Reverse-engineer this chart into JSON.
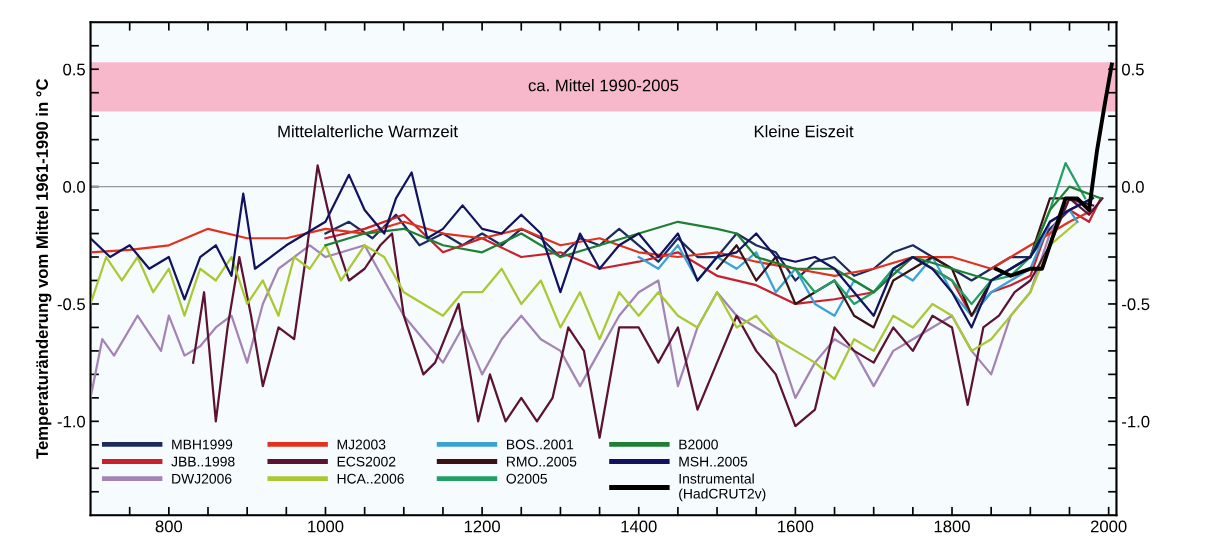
{
  "chart_data": {
    "type": "line",
    "ylabel": "Temperaturänderung vom Mittel 1961-1990 in °C",
    "xlim": [
      700,
      2010
    ],
    "ylim": [
      -1.4,
      0.7
    ],
    "y2lim": [
      -1.4,
      0.7
    ],
    "xticks": [
      {
        "value": 750,
        "label": null
      },
      800,
      {
        "value": 850,
        "label": null
      },
      {
        "value": 900,
        "label": null
      },
      {
        "value": 950,
        "label": null
      },
      1000,
      {
        "value": 1050,
        "label": null
      },
      {
        "value": 1100,
        "label": null
      },
      {
        "value": 1150,
        "label": null
      },
      1200,
      {
        "value": 1250,
        "label": null
      },
      {
        "value": 1300,
        "label": null
      },
      {
        "value": 1350,
        "label": null
      },
      1400,
      {
        "value": 1450,
        "label": null
      },
      {
        "value": 1500,
        "label": null
      },
      {
        "value": 1550,
        "label": null
      },
      1600,
      {
        "value": 1650,
        "label": null
      },
      {
        "value": 1700,
        "label": null
      },
      {
        "value": 1750,
        "label": null
      },
      1800,
      {
        "value": 1850,
        "label": null
      },
      {
        "value": 1900,
        "label": null
      },
      {
        "value": 1950,
        "label": null
      },
      2000
    ],
    "yticks": [
      {
        "value": -1.3,
        "label": null
      },
      {
        "value": -1.2,
        "label": null
      },
      {
        "value": -1.1,
        "label": null
      },
      {
        "value": -1.0,
        "label": "-1.0"
      },
      {
        "value": -0.9,
        "label": null
      },
      {
        "value": -0.8,
        "label": null
      },
      {
        "value": -0.7,
        "label": null
      },
      {
        "value": -0.6,
        "label": null
      },
      {
        "value": -0.5,
        "label": "-0.5"
      },
      {
        "value": -0.4,
        "label": null
      },
      {
        "value": -0.3,
        "label": null
      },
      {
        "value": -0.2,
        "label": null
      },
      {
        "value": -0.1,
        "label": null
      },
      {
        "value": 0.0,
        "label": "0.0"
      },
      {
        "value": 0.1,
        "label": null
      },
      {
        "value": 0.2,
        "label": null
      },
      {
        "value": 0.3,
        "label": null
      },
      {
        "value": 0.4,
        "label": null
      },
      {
        "value": 0.5,
        "label": "0.5"
      },
      {
        "value": 0.6,
        "label": null
      }
    ],
    "y2ticks": [
      {
        "value": -1.3,
        "label": null
      },
      {
        "value": -1.2,
        "label": null
      },
      {
        "value": -1.1,
        "label": null
      },
      {
        "value": -1.0,
        "label": "-1.0"
      },
      {
        "value": -0.9,
        "label": null
      },
      {
        "value": -0.8,
        "label": null
      },
      {
        "value": -0.7,
        "label": null
      },
      {
        "value": -0.6,
        "label": null
      },
      {
        "value": -0.5,
        "label": "-0.5"
      },
      {
        "value": -0.4,
        "label": null
      },
      {
        "value": -0.3,
        "label": null
      },
      {
        "value": -0.2,
        "label": null
      },
      {
        "value": -0.1,
        "label": null
      },
      {
        "value": 0.0,
        "label": "0.0"
      },
      {
        "value": 0.1,
        "label": null
      },
      {
        "value": 0.2,
        "label": null
      },
      {
        "value": 0.3,
        "label": null
      },
      {
        "value": 0.4,
        "label": null
      },
      {
        "value": 0.5,
        "label": "0.5"
      },
      {
        "value": 0.6,
        "label": null
      }
    ],
    "bands": [
      {
        "axis": "y",
        "from": 0.32,
        "to": 0.53,
        "label": "ca. Mittel 1990-2005",
        "color": "#f7b8cb"
      }
    ],
    "ref_lines": [
      {
        "axis": "y",
        "value": 0.0,
        "label": null,
        "color": "#999999"
      }
    ],
    "annotations": [
      "Mittelalterliche Warmzeit",
      "Kleine Eiszeit"
    ],
    "legend": "bottom left",
    "grid": false,
    "marker": "none",
    "line_style": "solid",
    "series": [
      {
        "name": "MBH1999",
        "color": "#1c2b5e",
        "x": [
          1000,
          1030,
          1060,
          1090,
          1120,
          1150,
          1175,
          1200,
          1225,
          1250,
          1275,
          1300,
          1325,
          1350,
          1375,
          1400,
          1425,
          1450,
          1475,
          1500,
          1525,
          1550,
          1575,
          1600,
          1625,
          1650,
          1675,
          1700,
          1725,
          1750,
          1775,
          1800,
          1825,
          1850,
          1875,
          1900,
          1925,
          1950,
          1980
        ],
        "values": [
          -0.2,
          -0.15,
          -0.22,
          -0.12,
          -0.25,
          -0.2,
          -0.25,
          -0.2,
          -0.25,
          -0.18,
          -0.22,
          -0.3,
          -0.22,
          -0.25,
          -0.18,
          -0.25,
          -0.32,
          -0.22,
          -0.3,
          -0.3,
          -0.2,
          -0.25,
          -0.28,
          -0.4,
          -0.32,
          -0.3,
          -0.38,
          -0.35,
          -0.28,
          -0.25,
          -0.3,
          -0.35,
          -0.4,
          -0.35,
          -0.3,
          -0.3,
          -0.18,
          -0.1,
          -0.05
        ]
      },
      {
        "name": "JBB..1998",
        "color": "#c8202c",
        "x": [
          1000,
          1050,
          1100,
          1150,
          1200,
          1250,
          1300,
          1350,
          1400,
          1450,
          1500,
          1550,
          1600,
          1650,
          1700,
          1750,
          1800,
          1825,
          1850,
          1875,
          1900,
          1925,
          1950,
          1975,
          1990
        ],
        "values": [
          -0.22,
          -0.18,
          -0.12,
          -0.28,
          -0.22,
          -0.3,
          -0.28,
          -0.35,
          -0.32,
          -0.28,
          -0.38,
          -0.42,
          -0.5,
          -0.48,
          -0.45,
          -0.3,
          -0.4,
          -0.55,
          -0.45,
          -0.42,
          -0.38,
          -0.15,
          -0.1,
          -0.15,
          -0.05
        ]
      },
      {
        "name": "DWJ2006",
        "color": "#a384b4",
        "x": [
          700,
          715,
          730,
          760,
          790,
          800,
          820,
          840,
          860,
          880,
          900,
          920,
          940,
          960,
          980,
          1000,
          1050,
          1100,
          1125,
          1150,
          1175,
          1200,
          1225,
          1250,
          1275,
          1300,
          1325,
          1350,
          1375,
          1400,
          1425,
          1450,
          1475,
          1500,
          1525,
          1550,
          1575,
          1600,
          1625,
          1650,
          1675,
          1700,
          1725,
          1750,
          1775,
          1800,
          1825,
          1850,
          1875,
          1900,
          1925,
          1950,
          1980
        ],
        "values": [
          -0.9,
          -0.65,
          -0.72,
          -0.55,
          -0.7,
          -0.55,
          -0.72,
          -0.68,
          -0.6,
          -0.55,
          -0.75,
          -0.5,
          -0.35,
          -0.3,
          -0.25,
          -0.3,
          -0.25,
          -0.55,
          -0.65,
          -0.75,
          -0.6,
          -0.8,
          -0.65,
          -0.55,
          -0.65,
          -0.7,
          -0.85,
          -0.7,
          -0.55,
          -0.45,
          -0.4,
          -0.85,
          -0.6,
          -0.45,
          -0.55,
          -0.6,
          -0.65,
          -0.9,
          -0.75,
          -0.65,
          -0.7,
          -0.85,
          -0.7,
          -0.65,
          -0.6,
          -0.55,
          -0.7,
          -0.8,
          -0.55,
          -0.45,
          -0.2,
          -0.05,
          -0.1
        ]
      },
      {
        "name": "MJ2003",
        "color": "#e2321f",
        "x": [
          700,
          750,
          800,
          850,
          900,
          950,
          1000,
          1050,
          1100,
          1150,
          1200,
          1250,
          1300,
          1350,
          1400,
          1450,
          1500,
          1550,
          1600,
          1650,
          1700,
          1750,
          1800,
          1850,
          1900,
          1950,
          1980
        ],
        "values": [
          -0.28,
          -0.27,
          -0.25,
          -0.18,
          -0.22,
          -0.22,
          -0.18,
          -0.2,
          -0.15,
          -0.2,
          -0.22,
          -0.18,
          -0.25,
          -0.22,
          -0.28,
          -0.3,
          -0.28,
          -0.32,
          -0.35,
          -0.38,
          -0.35,
          -0.3,
          -0.3,
          -0.35,
          -0.25,
          -0.15,
          -0.1
        ]
      },
      {
        "name": "ECS2002",
        "color": "#5c1232",
        "x": [
          831,
          845,
          860,
          875,
          890,
          905,
          920,
          940,
          960,
          975,
          990,
          1010,
          1030,
          1050,
          1070,
          1085,
          1100,
          1125,
          1140,
          1170,
          1195,
          1210,
          1230,
          1250,
          1270,
          1290,
          1310,
          1330,
          1350,
          1375,
          1400,
          1425,
          1450,
          1475,
          1500,
          1525,
          1550,
          1575,
          1600,
          1625,
          1650,
          1675,
          1700,
          1725,
          1750,
          1775,
          1800,
          1820,
          1840,
          1860,
          1880,
          1900,
          1925,
          1950,
          1975,
          1992
        ],
        "values": [
          -0.75,
          -0.45,
          -1.0,
          -0.6,
          -0.3,
          -0.55,
          -0.85,
          -0.6,
          -0.65,
          -0.3,
          0.09,
          -0.2,
          -0.4,
          -0.35,
          -0.25,
          -0.2,
          -0.55,
          -0.8,
          -0.75,
          -0.5,
          -1.0,
          -0.8,
          -1.0,
          -0.9,
          -1.0,
          -0.9,
          -0.6,
          -0.7,
          -1.07,
          -0.6,
          -0.6,
          -0.75,
          -0.6,
          -0.95,
          -0.75,
          -0.55,
          -0.7,
          -0.8,
          -1.02,
          -0.95,
          -0.6,
          -0.7,
          -0.75,
          -0.6,
          -0.7,
          -0.55,
          -0.6,
          -0.93,
          -0.6,
          -0.55,
          -0.45,
          -0.4,
          -0.25,
          -0.05,
          -0.12,
          -0.05
        ]
      },
      {
        "name": "HCA..2006",
        "color": "#a9c832",
        "x": [
          700,
          720,
          740,
          760,
          780,
          800,
          820,
          840,
          860,
          880,
          900,
          920,
          940,
          960,
          980,
          1000,
          1020,
          1050,
          1075,
          1100,
          1125,
          1150,
          1175,
          1200,
          1225,
          1250,
          1275,
          1300,
          1325,
          1350,
          1375,
          1400,
          1425,
          1450,
          1475,
          1500,
          1525,
          1550,
          1575,
          1600,
          1625,
          1650,
          1675,
          1700,
          1725,
          1750,
          1775,
          1800,
          1825,
          1850,
          1875,
          1900,
          1925,
          1960
        ],
        "values": [
          -0.5,
          -0.3,
          -0.4,
          -0.3,
          -0.45,
          -0.35,
          -0.55,
          -0.35,
          -0.4,
          -0.3,
          -0.5,
          -0.4,
          -0.55,
          -0.3,
          -0.35,
          -0.25,
          -0.4,
          -0.25,
          -0.3,
          -0.45,
          -0.5,
          -0.55,
          -0.45,
          -0.45,
          -0.35,
          -0.5,
          -0.4,
          -0.6,
          -0.45,
          -0.65,
          -0.45,
          -0.55,
          -0.45,
          -0.55,
          -0.6,
          -0.45,
          -0.6,
          -0.55,
          -0.65,
          -0.7,
          -0.75,
          -0.82,
          -0.65,
          -0.7,
          -0.55,
          -0.6,
          -0.5,
          -0.55,
          -0.7,
          -0.65,
          -0.55,
          -0.45,
          -0.25,
          -0.15
        ]
      },
      {
        "name": "BOS..2001",
        "color": "#3aa2d2",
        "x": [
          1400,
          1425,
          1450,
          1475,
          1500,
          1525,
          1550,
          1575,
          1600,
          1625,
          1650,
          1675,
          1700,
          1725,
          1750,
          1775,
          1800,
          1825,
          1850,
          1875,
          1900,
          1925,
          1950,
          1960
        ],
        "values": [
          -0.3,
          -0.35,
          -0.25,
          -0.4,
          -0.3,
          -0.35,
          -0.28,
          -0.45,
          -0.35,
          -0.5,
          -0.55,
          -0.4,
          -0.45,
          -0.35,
          -0.4,
          -0.3,
          -0.45,
          -0.55,
          -0.45,
          -0.4,
          -0.35,
          -0.15,
          -0.1,
          -0.15
        ]
      },
      {
        "name": "RMO..2005",
        "color": "#3a1212",
        "x": [
          1500,
          1525,
          1550,
          1575,
          1600,
          1625,
          1650,
          1675,
          1700,
          1725,
          1750,
          1775,
          1800,
          1825,
          1850,
          1875,
          1900,
          1925,
          1950,
          1980
        ],
        "values": [
          -0.35,
          -0.25,
          -0.4,
          -0.3,
          -0.5,
          -0.45,
          -0.4,
          -0.55,
          -0.6,
          -0.4,
          -0.35,
          -0.3,
          -0.35,
          -0.55,
          -0.4,
          -0.35,
          -0.3,
          -0.05,
          -0.05,
          -0.08
        ]
      },
      {
        "name": "O2005",
        "color": "#22a064",
        "x": [
          1600,
          1625,
          1650,
          1675,
          1700,
          1725,
          1750,
          1775,
          1800,
          1825,
          1850,
          1875,
          1900,
          1925,
          1945,
          1970
        ],
        "values": [
          -0.35,
          -0.45,
          -0.4,
          -0.5,
          -0.45,
          -0.35,
          -0.3,
          -0.35,
          -0.4,
          -0.5,
          -0.4,
          -0.38,
          -0.3,
          -0.1,
          0.1,
          -0.05
        ]
      },
      {
        "name": "B2000",
        "color": "#1f8034",
        "x": [
          1000,
          1050,
          1100,
          1150,
          1200,
          1250,
          1300,
          1350,
          1400,
          1450,
          1500,
          1525,
          1550,
          1600,
          1650,
          1700,
          1750,
          1800,
          1850,
          1900,
          1925,
          1950,
          1990
        ],
        "values": [
          -0.25,
          -0.2,
          -0.18,
          -0.25,
          -0.28,
          -0.2,
          -0.3,
          -0.25,
          -0.2,
          -0.15,
          -0.18,
          -0.2,
          -0.3,
          -0.35,
          -0.35,
          -0.45,
          -0.3,
          -0.35,
          -0.4,
          -0.3,
          -0.1,
          0.0,
          -0.05
        ]
      },
      {
        "name": "MSH..2005",
        "color": "#12125e",
        "x": [
          700,
          725,
          750,
          775,
          800,
          820,
          840,
          860,
          880,
          895,
          910,
          930,
          950,
          975,
          1000,
          1030,
          1050,
          1075,
          1090,
          1110,
          1130,
          1150,
          1175,
          1200,
          1225,
          1250,
          1275,
          1300,
          1325,
          1350,
          1375,
          1400,
          1425,
          1450,
          1475,
          1500,
          1525,
          1550,
          1575,
          1600,
          1625,
          1650,
          1675,
          1700,
          1725,
          1750,
          1775,
          1800,
          1825,
          1850,
          1875,
          1900,
          1925,
          1950,
          1979
        ],
        "values": [
          -0.22,
          -0.3,
          -0.25,
          -0.35,
          -0.3,
          -0.48,
          -0.3,
          -0.25,
          -0.38,
          -0.03,
          -0.35,
          -0.3,
          -0.25,
          -0.2,
          -0.15,
          0.05,
          -0.1,
          -0.2,
          -0.05,
          0.06,
          -0.22,
          -0.18,
          -0.08,
          -0.18,
          -0.2,
          -0.12,
          -0.2,
          -0.45,
          -0.2,
          -0.35,
          -0.25,
          -0.2,
          -0.3,
          -0.2,
          -0.4,
          -0.3,
          -0.28,
          -0.2,
          -0.3,
          -0.32,
          -0.3,
          -0.35,
          -0.45,
          -0.55,
          -0.35,
          -0.3,
          -0.35,
          -0.45,
          -0.6,
          -0.4,
          -0.35,
          -0.3,
          -0.15,
          -0.1,
          -0.05
        ]
      },
      {
        "name": "Instrumental\n(HadCRUT2v)",
        "color": "#000000",
        "x": [
          1856,
          1875,
          1900,
          1915,
          1930,
          1945,
          1960,
          1975,
          1985,
          1995,
          2004
        ],
        "values": [
          -0.35,
          -0.38,
          -0.35,
          -0.35,
          -0.2,
          -0.05,
          -0.05,
          -0.1,
          0.15,
          0.35,
          0.52
        ]
      }
    ]
  }
}
